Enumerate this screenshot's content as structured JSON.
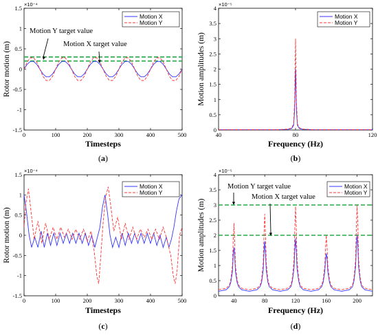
{
  "chart_data": [
    {
      "id": "a",
      "type": "line",
      "panel_label": "(a)",
      "xlabel": "Timesteps",
      "ylabel": "Rotor  motion (m)",
      "exponent": "×10⁻⁴",
      "xlim": [
        0,
        500
      ],
      "ylim": [
        -1.5,
        1.5
      ],
      "xticks": [
        0,
        100,
        200,
        300,
        400,
        500
      ],
      "yticks": [
        -1.5,
        -1,
        -0.5,
        0,
        0.5,
        1,
        1.5
      ],
      "legend_position": "top-right",
      "series": [
        {
          "name": "Motion X",
          "color": "#3333ff",
          "dash": "solid",
          "x": [
            0,
            10,
            20,
            30,
            40,
            50,
            60,
            70,
            80,
            90,
            100,
            110,
            120,
            130,
            140,
            150,
            160,
            170,
            180,
            190,
            200,
            210,
            220,
            230,
            240,
            250,
            260,
            270,
            280,
            290,
            300,
            310,
            320,
            330,
            340,
            350,
            360,
            370,
            380,
            390,
            400,
            410,
            420,
            430,
            440,
            450,
            460,
            470,
            480,
            490,
            500
          ],
          "y": [
            0.0,
            0.12,
            0.19,
            0.19,
            0.12,
            0.0,
            -0.12,
            -0.19,
            -0.19,
            -0.12,
            0.0,
            0.12,
            0.19,
            0.19,
            0.12,
            0.0,
            -0.12,
            -0.19,
            -0.19,
            -0.12,
            0.0,
            0.12,
            0.19,
            0.19,
            0.12,
            0.0,
            -0.12,
            -0.19,
            -0.19,
            -0.12,
            0.0,
            0.12,
            0.19,
            0.19,
            0.12,
            0.0,
            -0.12,
            -0.19,
            -0.19,
            -0.12,
            0.0,
            0.12,
            0.19,
            0.19,
            0.12,
            0.0,
            -0.12,
            -0.19,
            -0.19,
            -0.12,
            0.0
          ]
        },
        {
          "name": "Motion Y",
          "color": "#ff3333",
          "dash": "dashed",
          "x": [
            0,
            10,
            20,
            30,
            40,
            50,
            60,
            70,
            80,
            90,
            100,
            110,
            120,
            130,
            140,
            150,
            160,
            170,
            180,
            190,
            200,
            210,
            220,
            230,
            240,
            250,
            260,
            270,
            280,
            290,
            300,
            310,
            320,
            330,
            340,
            350,
            360,
            370,
            380,
            390,
            400,
            410,
            420,
            430,
            440,
            450,
            460,
            470,
            480,
            490,
            500
          ],
          "y": [
            0.0,
            0.18,
            0.28,
            0.28,
            0.18,
            0.0,
            -0.18,
            -0.28,
            -0.28,
            -0.18,
            0.0,
            0.18,
            0.28,
            0.28,
            0.18,
            0.0,
            -0.18,
            -0.28,
            -0.28,
            -0.18,
            0.0,
            0.18,
            0.28,
            0.28,
            0.18,
            0.0,
            -0.18,
            -0.28,
            -0.28,
            -0.18,
            0.0,
            0.18,
            0.28,
            0.28,
            0.18,
            0.0,
            -0.18,
            -0.28,
            -0.28,
            -0.18,
            0.0,
            0.18,
            0.28,
            0.28,
            0.18,
            0.0,
            -0.18,
            -0.28,
            -0.28,
            -0.18,
            0.0
          ]
        }
      ],
      "hlines": [
        {
          "y": 0.3,
          "color": "#22aa44",
          "label": "Motion Y target value"
        },
        {
          "y": 0.2,
          "color": "#22aa44",
          "label": "Motion X target value"
        }
      ]
    },
    {
      "id": "b",
      "type": "line",
      "panel_label": "(b)",
      "xlabel": "Frequency (Hz)",
      "ylabel": "Motion  amplitudes (m)",
      "exponent": "×10⁻⁵",
      "xlim": [
        40,
        120
      ],
      "ylim": [
        0,
        4
      ],
      "xticks": [
        40,
        80,
        120
      ],
      "yticks": [
        0,
        0.5,
        1,
        1.5,
        2,
        2.5,
        3,
        3.5,
        4
      ],
      "legend_position": "top-right",
      "series": [
        {
          "name": "Motion X",
          "color": "#3333ff",
          "dash": "solid",
          "x": [
            40,
            70,
            76,
            78,
            79,
            79.5,
            80,
            80.5,
            81,
            82,
            84,
            90,
            120
          ],
          "y": [
            0.01,
            0.01,
            0.02,
            0.05,
            0.15,
            0.6,
            2.0,
            0.6,
            0.15,
            0.05,
            0.02,
            0.01,
            0.01
          ]
        },
        {
          "name": "Motion Y",
          "color": "#ff3333",
          "dash": "dashed",
          "x": [
            40,
            70,
            76,
            78,
            79,
            79.5,
            80,
            80.5,
            81,
            82,
            84,
            90,
            120
          ],
          "y": [
            0.01,
            0.01,
            0.03,
            0.07,
            0.2,
            0.9,
            3.0,
            0.9,
            0.2,
            0.07,
            0.03,
            0.01,
            0.01
          ]
        }
      ],
      "hlines": []
    },
    {
      "id": "c",
      "type": "line",
      "panel_label": "(c)",
      "xlabel": "Timesteps",
      "ylabel": "Rotor  motion (m)",
      "exponent": "×10⁻⁴",
      "xlim": [
        0,
        500
      ],
      "ylim": [
        -1.5,
        1.5
      ],
      "xticks": [
        0,
        100,
        200,
        300,
        400,
        500
      ],
      "yticks": [
        -1.5,
        -1,
        -0.5,
        0,
        0.5,
        1,
        1.5
      ],
      "legend_position": "top-right",
      "series": [
        {
          "name": "Motion X",
          "color": "#3333ff",
          "dash": "solid",
          "x": [
            0,
            8,
            16,
            24,
            34,
            44,
            54,
            64,
            74,
            84,
            94,
            104,
            114,
            124,
            134,
            144,
            154,
            164,
            174,
            184,
            194,
            204,
            214,
            224,
            232,
            240,
            248,
            256,
            264,
            272,
            280,
            290,
            300,
            310,
            320,
            330,
            340,
            350,
            360,
            370,
            380,
            390,
            400,
            410,
            420,
            430,
            440,
            450,
            458,
            466,
            474,
            482,
            490,
            500
          ],
          "y": [
            1.0,
            0.55,
            0.0,
            -0.3,
            -0.05,
            -0.3,
            0.1,
            -0.3,
            0.05,
            -0.25,
            0.05,
            -0.25,
            0.05,
            -0.2,
            0.05,
            -0.2,
            0.05,
            -0.2,
            0.05,
            -0.2,
            0.05,
            -0.25,
            0.0,
            -0.3,
            -0.05,
            0.2,
            0.7,
            1.0,
            0.55,
            0.0,
            -0.3,
            -0.05,
            -0.3,
            0.05,
            -0.25,
            0.05,
            -0.2,
            0.05,
            -0.2,
            0.05,
            -0.2,
            0.05,
            -0.2,
            0.05,
            -0.25,
            0.0,
            -0.3,
            -0.05,
            -0.3,
            -0.1,
            0.2,
            0.6,
            0.9,
            1.0
          ]
        },
        {
          "name": "Motion Y",
          "color": "#ff3333",
          "dash": "dashed",
          "x": [
            0,
            6,
            14,
            22,
            32,
            44,
            56,
            68,
            80,
            92,
            104,
            116,
            128,
            140,
            152,
            164,
            176,
            188,
            200,
            212,
            222,
            230,
            236,
            242,
            250,
            258,
            266,
            274,
            284,
            296,
            308,
            320,
            332,
            344,
            356,
            368,
            380,
            392,
            404,
            416,
            428,
            440,
            452,
            464,
            472,
            478,
            484,
            492,
            500
          ],
          "y": [
            0.2,
            0.8,
            1.15,
            0.6,
            -0.1,
            0.35,
            -0.2,
            0.3,
            -0.1,
            0.2,
            -0.1,
            0.2,
            -0.05,
            0.15,
            -0.1,
            0.15,
            -0.1,
            0.15,
            -0.15,
            0.1,
            -0.4,
            -1.0,
            -1.2,
            -0.6,
            0.3,
            0.95,
            1.2,
            0.75,
            0.1,
            0.45,
            -0.1,
            0.3,
            -0.1,
            0.2,
            -0.1,
            0.15,
            -0.05,
            0.15,
            -0.1,
            0.15,
            -0.1,
            0.2,
            -0.1,
            -0.5,
            -1.0,
            -1.2,
            -0.9,
            0.0,
            0.2
          ]
        }
      ],
      "hlines": []
    },
    {
      "id": "d",
      "type": "line",
      "panel_label": "(d)",
      "xlabel": "Frequency (Hz)",
      "ylabel": "Motion amplitudes (m)",
      "exponent": "×10⁻⁵",
      "xlim": [
        20,
        220
      ],
      "ylim": [
        0,
        4
      ],
      "xticks": [
        40,
        80,
        120,
        160,
        200
      ],
      "yticks": [
        0,
        0.5,
        1,
        1.5,
        2,
        2.5,
        3,
        3.5,
        4
      ],
      "legend_position": "top-right",
      "series": [
        {
          "name": "Motion X",
          "color": "#3333ff",
          "dash": "solid",
          "x": [
            20,
            30,
            34,
            36,
            38,
            39,
            40,
            41,
            42,
            44,
            46,
            50,
            60,
            70,
            74,
            76,
            78,
            79,
            80,
            81,
            82,
            84,
            86,
            90,
            100,
            110,
            114,
            116,
            118,
            119,
            120,
            121,
            122,
            124,
            126,
            130,
            140,
            150,
            154,
            156,
            158,
            159,
            160,
            161,
            162,
            164,
            166,
            170,
            180,
            190,
            194,
            196,
            198,
            199,
            200,
            201,
            202,
            204,
            206,
            210,
            220
          ],
          "y": [
            0.15,
            0.2,
            0.3,
            0.45,
            0.8,
            1.3,
            1.6,
            1.3,
            0.8,
            0.45,
            0.3,
            0.2,
            0.15,
            0.2,
            0.3,
            0.45,
            0.85,
            1.4,
            1.8,
            1.4,
            0.85,
            0.45,
            0.3,
            0.2,
            0.15,
            0.2,
            0.3,
            0.5,
            0.9,
            1.5,
            1.9,
            1.5,
            0.9,
            0.5,
            0.3,
            0.2,
            0.15,
            0.2,
            0.3,
            0.45,
            0.8,
            1.2,
            1.4,
            1.2,
            0.8,
            0.45,
            0.3,
            0.2,
            0.15,
            0.2,
            0.3,
            0.5,
            0.95,
            1.6,
            2.0,
            1.6,
            0.95,
            0.5,
            0.3,
            0.2,
            0.15
          ]
        },
        {
          "name": "Motion Y",
          "color": "#ff3333",
          "dash": "dashed",
          "x": [
            20,
            30,
            34,
            36,
            38,
            39,
            40,
            41,
            42,
            44,
            46,
            50,
            60,
            70,
            74,
            76,
            78,
            79,
            80,
            81,
            82,
            84,
            86,
            90,
            100,
            110,
            114,
            116,
            118,
            119,
            120,
            121,
            122,
            124,
            126,
            130,
            140,
            150,
            154,
            156,
            158,
            159,
            160,
            161,
            162,
            164,
            166,
            170,
            180,
            190,
            194,
            196,
            198,
            199,
            200,
            201,
            202,
            204,
            206,
            210,
            220
          ],
          "y": [
            0.2,
            0.25,
            0.35,
            0.55,
            1.0,
            1.8,
            2.4,
            1.8,
            1.0,
            0.55,
            0.35,
            0.25,
            0.2,
            0.25,
            0.35,
            0.55,
            1.1,
            2.0,
            2.7,
            2.0,
            1.1,
            0.55,
            0.35,
            0.25,
            0.2,
            0.25,
            0.35,
            0.6,
            1.2,
            2.2,
            2.95,
            2.2,
            1.2,
            0.6,
            0.35,
            0.25,
            0.2,
            0.25,
            0.35,
            0.55,
            1.0,
            1.6,
            2.0,
            1.6,
            1.0,
            0.55,
            0.35,
            0.25,
            0.2,
            0.25,
            0.35,
            0.6,
            1.2,
            2.3,
            3.0,
            2.3,
            1.2,
            0.6,
            0.35,
            0.25,
            0.2
          ]
        }
      ],
      "hlines": [
        {
          "y": 3.0,
          "color": "#22aa44",
          "label": "Motion Y target value"
        },
        {
          "y": 2.0,
          "color": "#22aa44",
          "label": "Motion X target value"
        }
      ]
    }
  ]
}
